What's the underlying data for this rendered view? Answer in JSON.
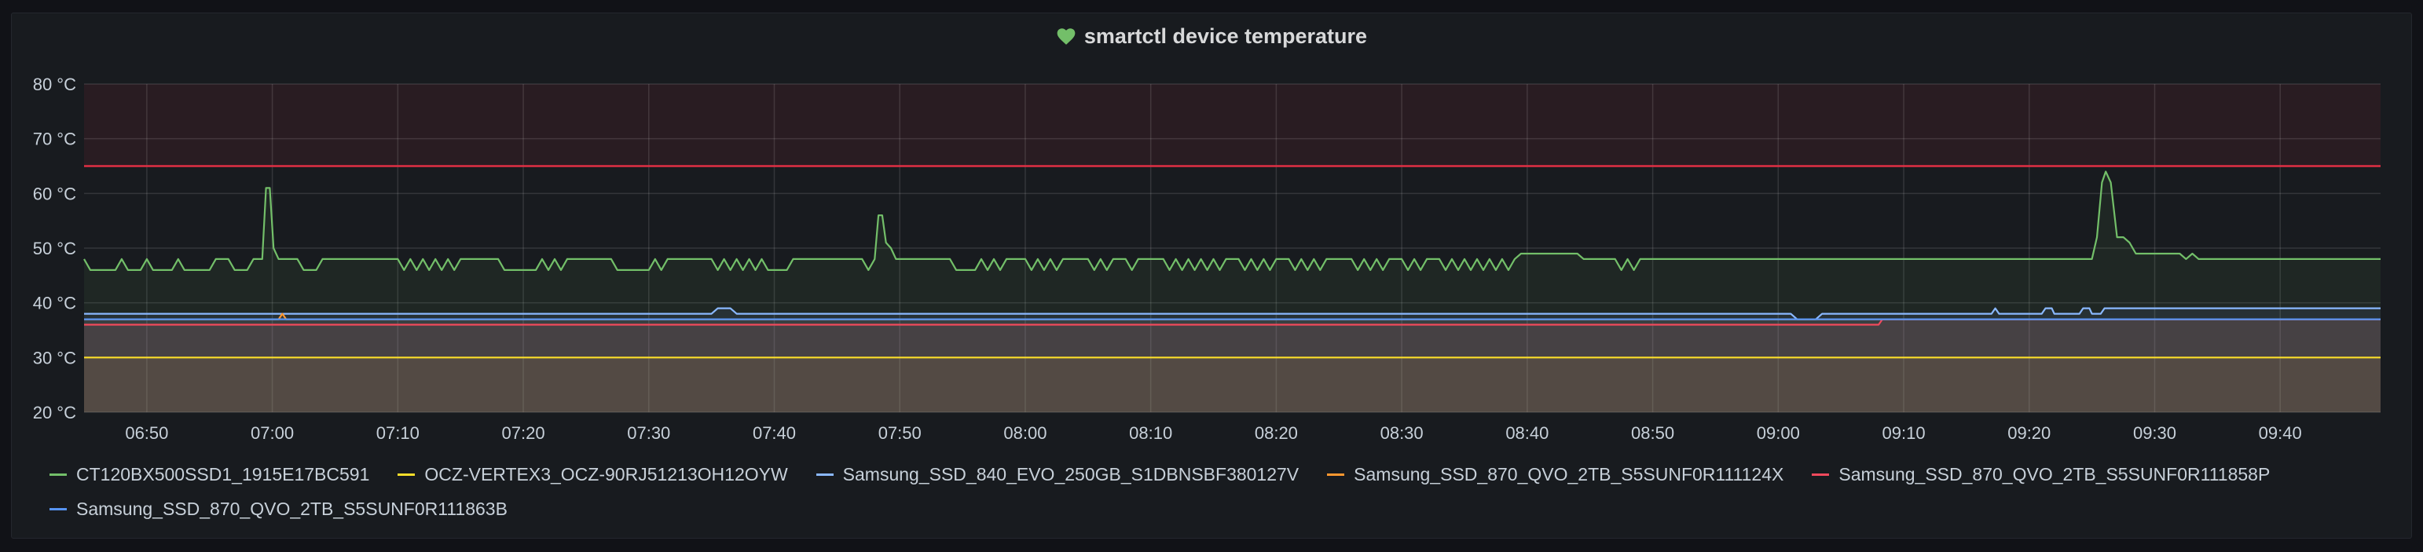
{
  "panel": {
    "title": "smartctl device temperature",
    "status_icon": "heart-icon",
    "status_color": "#73bf69"
  },
  "chart_data": {
    "type": "line",
    "ylim": [
      20,
      80
    ],
    "yticks": [
      "20 °C",
      "30 °C",
      "40 °C",
      "50 °C",
      "60 °C",
      "70 °C",
      "80 °C"
    ],
    "xlim": [
      "06:45",
      "09:48"
    ],
    "xticks": [
      "06:50",
      "07:00",
      "07:10",
      "07:20",
      "07:30",
      "07:40",
      "07:50",
      "08:00",
      "08:10",
      "08:20",
      "08:30",
      "08:40",
      "08:50",
      "09:00",
      "09:10",
      "09:20",
      "09:30",
      "09:40"
    ],
    "threshold": {
      "value": 65,
      "color": "#e02f44"
    },
    "grid": true,
    "legend_position": "bottom",
    "series": [
      {
        "name": "CT120BX500SSD1_1915E17BC591",
        "color": "#73bf69",
        "points": [
          [
            "06:45",
            48
          ],
          [
            "06:45.5",
            46
          ],
          [
            "06:47.5",
            46
          ],
          [
            "06:48",
            48
          ],
          [
            "06:48.5",
            46
          ],
          [
            "06:49.5",
            46
          ],
          [
            "06:50",
            48
          ],
          [
            "06:50.5",
            46
          ],
          [
            "06:52",
            46
          ],
          [
            "06:52.5",
            48
          ],
          [
            "06:53",
            46
          ],
          [
            "06:55",
            46
          ],
          [
            "06:55.5",
            48
          ],
          [
            "06:56.5",
            48
          ],
          [
            "06:57",
            46
          ],
          [
            "06:58",
            46
          ],
          [
            "06:58.5",
            48
          ],
          [
            "06:59.2",
            48
          ],
          [
            "06:59.5",
            61
          ],
          [
            "06:59.8",
            61
          ],
          [
            "07:00.1",
            50
          ],
          [
            "07:00.5",
            48
          ],
          [
            "07:02",
            48
          ],
          [
            "07:02.5",
            46
          ],
          [
            "07:03.5",
            46
          ],
          [
            "07:04",
            48
          ],
          [
            "07:10",
            48
          ],
          [
            "07:10.5",
            46
          ],
          [
            "07:11",
            48
          ],
          [
            "07:11.5",
            46
          ],
          [
            "07:12",
            48
          ],
          [
            "07:12.5",
            46
          ],
          [
            "07:13",
            48
          ],
          [
            "07:13.5",
            46
          ],
          [
            "07:14",
            48
          ],
          [
            "07:14.5",
            46
          ],
          [
            "07:15",
            48
          ],
          [
            "07:18",
            48
          ],
          [
            "07:18.5",
            46
          ],
          [
            "07:21",
            46
          ],
          [
            "07:21.5",
            48
          ],
          [
            "07:22",
            46
          ],
          [
            "07:22.5",
            48
          ],
          [
            "07:23",
            46
          ],
          [
            "07:23.5",
            48
          ],
          [
            "07:27",
            48
          ],
          [
            "07:27.5",
            46
          ],
          [
            "07:30",
            46
          ],
          [
            "07:30.5",
            48
          ],
          [
            "07:31",
            46
          ],
          [
            "07:31.5",
            48
          ],
          [
            "07:35",
            48
          ],
          [
            "07:35.5",
            46
          ],
          [
            "07:36",
            48
          ],
          [
            "07:36.5",
            46
          ],
          [
            "07:37",
            48
          ],
          [
            "07:37.5",
            46
          ],
          [
            "07:38",
            48
          ],
          [
            "07:38.5",
            46
          ],
          [
            "07:39",
            48
          ],
          [
            "07:39.5",
            46
          ],
          [
            "07:41",
            46
          ],
          [
            "07:41.5",
            48
          ],
          [
            "07:47",
            48
          ],
          [
            "07:47.5",
            46
          ],
          [
            "07:48",
            48
          ],
          [
            "07:48.3",
            56
          ],
          [
            "07:48.6",
            56
          ],
          [
            "07:48.9",
            51
          ],
          [
            "07:49.3",
            50
          ],
          [
            "07:49.7",
            48
          ],
          [
            "07:54",
            48
          ],
          [
            "07:54.5",
            46
          ],
          [
            "07:56",
            46
          ],
          [
            "07:56.5",
            48
          ],
          [
            "07:57",
            46
          ],
          [
            "07:57.5",
            48
          ],
          [
            "07:58",
            46
          ],
          [
            "07:58.5",
            48
          ],
          [
            "08:00",
            48
          ],
          [
            "08:00.5",
            46
          ],
          [
            "08:01",
            48
          ],
          [
            "08:01.5",
            46
          ],
          [
            "08:02",
            48
          ],
          [
            "08:02.5",
            46
          ],
          [
            "08:03",
            48
          ],
          [
            "08:05",
            48
          ],
          [
            "08:05.5",
            46
          ],
          [
            "08:06",
            48
          ],
          [
            "08:06.5",
            46
          ],
          [
            "08:07",
            48
          ],
          [
            "08:08",
            48
          ],
          [
            "08:08.5",
            46
          ],
          [
            "08:09",
            48
          ],
          [
            "08:11",
            48
          ],
          [
            "08:11.5",
            46
          ],
          [
            "08:12",
            48
          ],
          [
            "08:12.5",
            46
          ],
          [
            "08:13",
            48
          ],
          [
            "08:13.5",
            46
          ],
          [
            "08:14",
            48
          ],
          [
            "08:14.5",
            46
          ],
          [
            "08:15",
            48
          ],
          [
            "08:15.5",
            46
          ],
          [
            "08:16",
            48
          ],
          [
            "08:17",
            48
          ],
          [
            "08:17.5",
            46
          ],
          [
            "08:18",
            48
          ],
          [
            "08:18.5",
            46
          ],
          [
            "08:19",
            48
          ],
          [
            "08:19.5",
            46
          ],
          [
            "08:20",
            48
          ],
          [
            "08:21",
            48
          ],
          [
            "08:21.5",
            46
          ],
          [
            "08:22",
            48
          ],
          [
            "08:22.5",
            46
          ],
          [
            "08:23",
            48
          ],
          [
            "08:23.5",
            46
          ],
          [
            "08:24",
            48
          ],
          [
            "08:26",
            48
          ],
          [
            "08:26.5",
            46
          ],
          [
            "08:27",
            48
          ],
          [
            "08:27.5",
            46
          ],
          [
            "08:28",
            48
          ],
          [
            "08:28.5",
            46
          ],
          [
            "08:29",
            48
          ],
          [
            "08:30",
            48
          ],
          [
            "08:30.5",
            46
          ],
          [
            "08:31",
            48
          ],
          [
            "08:31.5",
            46
          ],
          [
            "08:32",
            48
          ],
          [
            "08:33",
            48
          ],
          [
            "08:33.5",
            46
          ],
          [
            "08:34",
            48
          ],
          [
            "08:34.5",
            46
          ],
          [
            "08:35",
            48
          ],
          [
            "08:35.5",
            46
          ],
          [
            "08:36",
            48
          ],
          [
            "08:36.5",
            46
          ],
          [
            "08:37",
            48
          ],
          [
            "08:37.5",
            46
          ],
          [
            "08:38",
            48
          ],
          [
            "08:38.5",
            46
          ],
          [
            "08:39",
            48
          ],
          [
            "08:39.5",
            49
          ],
          [
            "08:44",
            49
          ],
          [
            "08:44.5",
            48
          ],
          [
            "08:47",
            48
          ],
          [
            "08:47.5",
            46
          ],
          [
            "08:48",
            48
          ],
          [
            "08:48.5",
            46
          ],
          [
            "08:49",
            48
          ],
          [
            "09:25",
            48
          ],
          [
            "09:25.4",
            52
          ],
          [
            "09:25.8",
            62
          ],
          [
            "09:26.1",
            64
          ],
          [
            "09:26.5",
            62
          ],
          [
            "09:27",
            52
          ],
          [
            "09:27.5",
            52
          ],
          [
            "09:28",
            51
          ],
          [
            "09:28.5",
            49
          ],
          [
            "09:32",
            49
          ],
          [
            "09:32.5",
            48
          ],
          [
            "09:33",
            49
          ],
          [
            "09:33.5",
            48
          ],
          [
            "09:48",
            48
          ]
        ]
      },
      {
        "name": "OCZ-VERTEX3_OCZ-90RJ51213OH12OYW",
        "color": "#fade2a",
        "points": [
          [
            "06:45",
            30
          ],
          [
            "09:48",
            30
          ]
        ]
      },
      {
        "name": "Samsung_SSD_840_EVO_250GB_S1DBNSBF380127V",
        "color": "#8ab8ff",
        "points": [
          [
            "06:45",
            38
          ],
          [
            "07:35",
            38
          ],
          [
            "07:35.5",
            39
          ],
          [
            "07:36.5",
            39
          ],
          [
            "07:37",
            38
          ],
          [
            "09:01",
            38
          ],
          [
            "09:01.5",
            37
          ],
          [
            "09:03",
            37
          ],
          [
            "09:03.5",
            38
          ],
          [
            "09:17",
            38
          ],
          [
            "09:17.3",
            39
          ],
          [
            "09:17.6",
            38
          ],
          [
            "09:21",
            38
          ],
          [
            "09:21.3",
            39
          ],
          [
            "09:21.8",
            39
          ],
          [
            "09:22",
            38
          ],
          [
            "09:24",
            38
          ],
          [
            "09:24.3",
            39
          ],
          [
            "09:24.8",
            39
          ],
          [
            "09:25",
            38
          ],
          [
            "09:25.7",
            38
          ],
          [
            "09:26",
            39
          ],
          [
            "09:48",
            39
          ]
        ]
      },
      {
        "name": "Samsung_SSD_870_QVO_2TB_S5SUNF0R111124X",
        "color": "#ff9830",
        "points": [
          [
            "06:45",
            37
          ],
          [
            "07:00.5",
            37
          ],
          [
            "07:00.8",
            38
          ],
          [
            "07:01.1",
            37
          ],
          [
            "09:48",
            37
          ]
        ]
      },
      {
        "name": "Samsung_SSD_870_QVO_2TB_S5SUNF0R111858P",
        "color": "#f2495c",
        "points": [
          [
            "06:45",
            36
          ],
          [
            "09:08",
            36
          ],
          [
            "09:08.3",
            37
          ],
          [
            "09:48",
            37
          ]
        ]
      },
      {
        "name": "Samsung_SSD_870_QVO_2TB_S5SUNF0R111863B",
        "color": "#5794f2",
        "points": [
          [
            "06:45",
            37
          ],
          [
            "09:48",
            37
          ]
        ]
      }
    ]
  },
  "legend_items": [
    "CT120BX500SSD1_1915E17BC591",
    "OCZ-VERTEX3_OCZ-90RJ51213OH12OYW",
    "Samsung_SSD_840_EVO_250GB_S1DBNSBF380127V",
    "Samsung_SSD_870_QVO_2TB_S5SUNF0R111124X",
    "Samsung_SSD_870_QVO_2TB_S5SUNF0R111858P",
    "Samsung_SSD_870_QVO_2TB_S5SUNF0R111863B"
  ]
}
